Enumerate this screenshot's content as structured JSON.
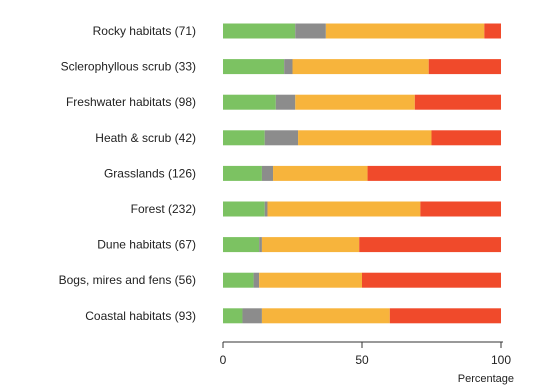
{
  "chart_data": {
    "type": "bar",
    "orientation": "horizontal",
    "stacked": true,
    "title": "",
    "xlabel": "Percentage",
    "ylabel": "",
    "xlim": [
      0,
      100
    ],
    "xticks": [
      "0",
      "50",
      "100"
    ],
    "grid": false,
    "legend": "none",
    "categories": [
      "Rocky habitats (71)",
      "Sclerophyllous scrub (33)",
      "Freshwater habitats (98)",
      "Heath & scrub (42)",
      "Grasslands (126)",
      "Forest (232)",
      "Dune habitats (67)",
      "Bogs, mires and fens (56)",
      "Coastal habitats (93)"
    ],
    "series": [
      {
        "color": "#7cc262",
        "values": [
          26,
          22,
          19,
          15,
          14,
          15,
          13,
          11,
          7
        ]
      },
      {
        "color": "#8c8c8c",
        "values": [
          11,
          3,
          7,
          12,
          4,
          1,
          1,
          2,
          7
        ]
      },
      {
        "color": "#f7b43c",
        "values": [
          57,
          49,
          43,
          48,
          34,
          55,
          35,
          37,
          46
        ]
      },
      {
        "color": "#f04a2b",
        "values": [
          6,
          26,
          31,
          25,
          48,
          29,
          51,
          50,
          40
        ]
      }
    ]
  }
}
